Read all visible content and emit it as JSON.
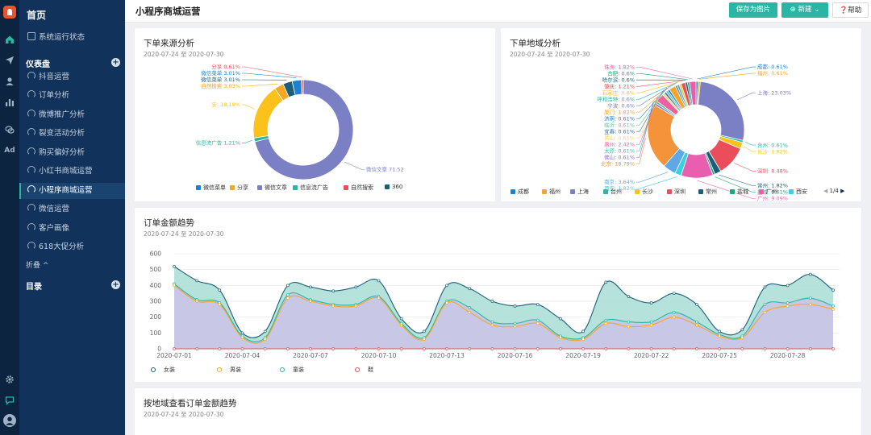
{
  "app": {
    "home": "首页"
  },
  "header": {
    "title": "小程序商城运营",
    "save_image": "保存为图片",
    "new": "新建",
    "help": "帮助"
  },
  "sidebar": {
    "status": "系统运行状态",
    "dashboard_section": "仪表盘",
    "items": [
      "抖音运营",
      "订单分析",
      "微博推广分析",
      "裂变活动分析",
      "购买偏好分析",
      "小红书商城运营",
      "小程序商城运营",
      "微信运营",
      "客户画像",
      "618大促分析"
    ],
    "active_index": 6,
    "fold": "折叠 ^",
    "catalog_section": "目录"
  },
  "colors": {
    "teal": "#2bb5a5",
    "navy": "#11325a"
  },
  "card1": {
    "title": "下单来源分析",
    "subtitle": "2020-07-24 至 2020-07-30",
    "chart_data": {
      "type": "pie",
      "categories": [
        "微信文章",
        "信息流广告",
        "安",
        "自然搜索",
        "微信菜单",
        "微信菜单",
        "分享"
      ],
      "values": [
        71.52,
        1.21,
        18.18,
        3.03,
        3.01,
        3.01,
        0.61
      ],
      "labels": [
        "微信文章 71.52",
        "信息流广告 1.21%",
        "安: 18.18%",
        "自然搜索 3.03%",
        "微信菜单 3.01%",
        "微信菜单 3.01%",
        "分享 0.61%"
      ],
      "legend": [
        "微信菜单",
        "分享",
        "微信文章",
        "信息流广告",
        "自然搜索",
        "360"
      ]
    }
  },
  "card2": {
    "title": "下单地域分析",
    "subtitle": "2020-07-24 至 2020-07-30",
    "chart_data": {
      "type": "pie",
      "categories": [
        "成都",
        "福州",
        "上海",
        "台州",
        "长沙",
        "深圳",
        "常州",
        "盐城",
        "广州",
        "西安",
        "南京",
        "北京",
        "佛山",
        "太原",
        "惠州",
        "黄山",
        "宜春",
        "临沂",
        "济南",
        "厦门",
        "宁波",
        "呼和浩特",
        "石家庄",
        "肇庆",
        "哈尔滨",
        "合肥",
        "珠海"
      ],
      "values": [
        0.61,
        0.61,
        23.03,
        0.61,
        1.82,
        8.48,
        1.82,
        0.61,
        9.09,
        1.82,
        3.64,
        18.79,
        0.61,
        0.61,
        2.42,
        0.61,
        0.61,
        0.61,
        0.61,
        1.82,
        0.6,
        0.6,
        0.6,
        1.21,
        0.6,
        0.6,
        1.82
      ],
      "labels": [
        "成都: 0.61%",
        "福州: 0.61%",
        "上海: 23.03%",
        "台州: 0.61%",
        "长沙: 1.82%",
        "深圳: 8.48%",
        "常州: 1.82%",
        "盐城: 0.61%",
        "广州: 9.09%",
        "西安: 1.82%",
        "南京: 3.64%",
        "北京: 18.79%",
        "佛山: 0.61%",
        "太原: 0.61%",
        "惠州: 2.42%",
        "黄山: 0.61%",
        "宜春: 0.61%",
        "临沂: 0.61%",
        "济南: 0.61%",
        "厦门: 1.82%",
        "宁波: 0.6%",
        "呼和浩特: 0.6%",
        "石家庄: 0.6%",
        "肇庆: 1.21%",
        "哈尔滨: 0.6%",
        "合肥: 0.6%",
        "珠海: 1.82%"
      ],
      "legend": [
        "成都",
        "福州",
        "上海",
        "台州",
        "长沙",
        "深圳",
        "常州",
        "盐城",
        "广州",
        "西安"
      ],
      "pager": "1/4"
    }
  },
  "card3": {
    "title": "订单金额趋势",
    "subtitle": "2020-07-24 至 2020-07-30",
    "chart_data": {
      "type": "area",
      "x": [
        "2020-07-01",
        "2020-07-02",
        "2020-07-03",
        "2020-07-04",
        "2020-07-05",
        "2020-07-06",
        "2020-07-07",
        "2020-07-08",
        "2020-07-09",
        "2020-07-10",
        "2020-07-11",
        "2020-07-12",
        "2020-07-13",
        "2020-07-14",
        "2020-07-15",
        "2020-07-16",
        "2020-07-17",
        "2020-07-18",
        "2020-07-19",
        "2020-07-20",
        "2020-07-21",
        "2020-07-22",
        "2020-07-23",
        "2020-07-24",
        "2020-07-25",
        "2020-07-26",
        "2020-07-27",
        "2020-07-28",
        "2020-07-29",
        "2020-07-30"
      ],
      "xticks": [
        "2020-07-01",
        "2020-07-04",
        "2020-07-07",
        "2020-07-10",
        "2020-07-13",
        "2020-07-16",
        "2020-07-19",
        "2020-07-22",
        "2020-07-25",
        "2020-07-28"
      ],
      "ylim": [
        0,
        600
      ],
      "yticks": [
        0,
        100,
        200,
        300,
        400,
        500,
        600
      ],
      "series": [
        {
          "name": "女装",
          "color": "#1a5f7a",
          "values": [
            520,
            430,
            370,
            100,
            110,
            400,
            390,
            365,
            390,
            430,
            190,
            110,
            400,
            380,
            300,
            270,
            280,
            190,
            110,
            420,
            330,
            290,
            350,
            280,
            110,
            120,
            390,
            400,
            470,
            370
          ]
        },
        {
          "name": "男装",
          "color": "#f5a623",
          "values": [
            400,
            300,
            280,
            70,
            60,
            320,
            300,
            270,
            270,
            320,
            150,
            60,
            290,
            230,
            150,
            140,
            160,
            70,
            60,
            160,
            140,
            150,
            200,
            150,
            80,
            70,
            230,
            270,
            280,
            250
          ]
        },
        {
          "name": "童装",
          "color": "#2bb5a5",
          "values": [
            410,
            310,
            290,
            80,
            70,
            340,
            310,
            280,
            280,
            330,
            160,
            70,
            300,
            260,
            170,
            160,
            180,
            80,
            70,
            180,
            170,
            170,
            230,
            170,
            90,
            80,
            280,
            290,
            320,
            270
          ]
        },
        {
          "name": "鞋",
          "color": "#e94e5a",
          "values": [
            0,
            0,
            0,
            0,
            0,
            0,
            0,
            0,
            0,
            0,
            0,
            0,
            0,
            0,
            0,
            0,
            0,
            0,
            0,
            0,
            0,
            0,
            0,
            0,
            0,
            0,
            0,
            0,
            0,
            0
          ]
        }
      ]
    }
  },
  "card4": {
    "title": "按地域查看订单金额趋势",
    "subtitle": "2020-07-24 至 2020-07-30"
  }
}
